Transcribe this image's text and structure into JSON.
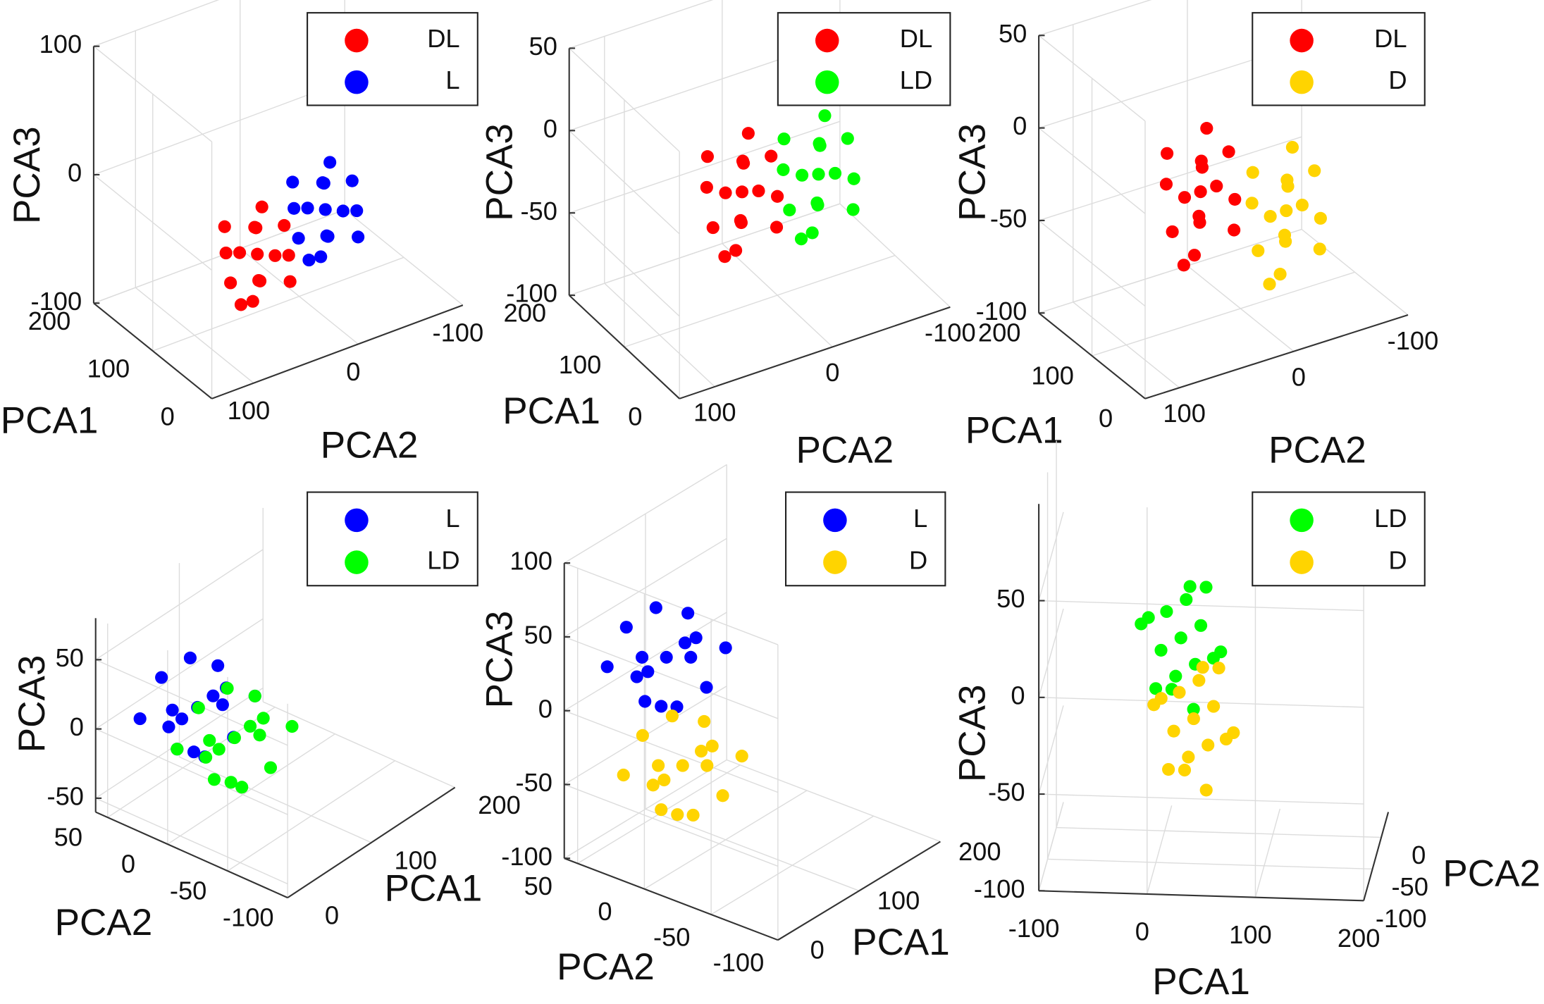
{
  "chart_data": [
    {
      "type": "scatter3d",
      "xlabel": "PCA1",
      "ylabel": "PCA2",
      "zlabel": "PCA3",
      "xlim": [
        0,
        200
      ],
      "ylim": [
        -100,
        140
      ],
      "zlim": [
        -100,
        100
      ],
      "xticks": [
        0,
        100,
        200
      ],
      "yticks": [
        -100,
        0,
        100
      ],
      "zticks": [
        -100,
        0,
        100
      ],
      "grid": true,
      "legend": "upper right",
      "series": [
        {
          "name": "DL",
          "color": "#ff0000",
          "x": [
            100,
            120,
            80,
            110,
            90,
            130,
            70,
            100,
            100,
            110,
            90,
            120,
            80,
            140,
            60,
            110
          ],
          "y": [
            40,
            30,
            50,
            60,
            20,
            40,
            40,
            70,
            10,
            30,
            50,
            60,
            20,
            20,
            60,
            50
          ],
          "z": [
            -55,
            -45,
            -65,
            -75,
            -35,
            -65,
            -45,
            -45,
            -65,
            -25,
            -85,
            -35,
            -75,
            -55,
            -55,
            -95
          ]
        },
        {
          "name": "L",
          "color": "#0000ff",
          "x": [
            100,
            120,
            80,
            110,
            90,
            130,
            70,
            100,
            100,
            110,
            90,
            120,
            80,
            140,
            60,
            110
          ],
          "y": [
            -25,
            -35,
            -15,
            -5,
            -45,
            -25,
            -25,
            5,
            -55,
            -35,
            -15,
            -5,
            -45,
            -45,
            -5,
            -15
          ],
          "z": [
            -40,
            -30,
            -50,
            -60,
            -20,
            -50,
            -30,
            -30,
            -50,
            -10,
            -70,
            -20,
            -60,
            -40,
            -40,
            -80
          ]
        }
      ]
    },
    {
      "type": "scatter3d",
      "xlabel": "PCA1",
      "ylabel": "PCA2",
      "zlabel": "PCA3",
      "xlim": [
        0,
        200
      ],
      "ylim": [
        -100,
        130
      ],
      "zlim": [
        -100,
        50
      ],
      "xticks": [
        0,
        100,
        200
      ],
      "yticks": [
        -100,
        0,
        100
      ],
      "zticks": [
        -100,
        -50,
        0,
        50
      ],
      "grid": true,
      "legend": "upper right",
      "series": [
        {
          "name": "DL",
          "color": "#ff0000",
          "x": [
            100,
            120,
            80,
            110,
            90,
            130,
            70,
            100,
            100,
            110,
            90,
            120,
            80,
            140,
            60,
            110
          ],
          "y": [
            30,
            20,
            40,
            50,
            10,
            30,
            30,
            60,
            0,
            20,
            40,
            50,
            10,
            10,
            50,
            40
          ],
          "z": [
            -30,
            -20,
            -40,
            -50,
            -10,
            -40,
            -20,
            -20,
            -40,
            0,
            -60,
            -10,
            -50,
            -30,
            -30,
            -70
          ]
        },
        {
          "name": "LD",
          "color": "#00ff00",
          "x": [
            100,
            120,
            80,
            110,
            90,
            130,
            70,
            100,
            100,
            110,
            90,
            120,
            80,
            140,
            60,
            110
          ],
          "y": [
            -35,
            -45,
            -25,
            -15,
            -55,
            -35,
            -35,
            -5,
            -65,
            -45,
            -25,
            -15,
            -55,
            -55,
            -15,
            -25
          ],
          "z": [
            -35,
            -25,
            -45,
            -55,
            -15,
            -45,
            -25,
            -25,
            -45,
            -5,
            -65,
            -15,
            -55,
            -35,
            -35,
            -75
          ]
        }
      ]
    },
    {
      "type": "scatter3d",
      "xlabel": "PCA1",
      "ylabel": "PCA2",
      "zlabel": "PCA3",
      "xlim": [
        0,
        200
      ],
      "ylim": [
        -100,
        130
      ],
      "zlim": [
        -100,
        50
      ],
      "xticks": [
        0,
        100,
        200
      ],
      "yticks": [
        -100,
        0,
        100
      ],
      "zticks": [
        -100,
        -50,
        0,
        50
      ],
      "grid": true,
      "legend": "upper right",
      "series": [
        {
          "name": "DL",
          "color": "#ff0000",
          "x": [
            100,
            120,
            80,
            110,
            90,
            130,
            70,
            100,
            100,
            110,
            90,
            120,
            80,
            140,
            60,
            110
          ],
          "y": [
            35,
            25,
            45,
            55,
            15,
            35,
            35,
            65,
            5,
            25,
            45,
            55,
            15,
            15,
            55,
            45
          ],
          "z": [
            -30,
            -20,
            -40,
            -50,
            -10,
            -40,
            -20,
            -20,
            -40,
            0,
            -60,
            -10,
            -50,
            -30,
            -30,
            -70
          ]
        },
        {
          "name": "D",
          "color": "#ffd400",
          "x": [
            100,
            120,
            80,
            110,
            90,
            130,
            70,
            100,
            100,
            110,
            90,
            120,
            80,
            140,
            60,
            110
          ],
          "y": [
            -40,
            -50,
            -30,
            -20,
            -60,
            -40,
            -40,
            -10,
            -70,
            -50,
            -30,
            -20,
            -60,
            -60,
            -20,
            -30
          ],
          "z": [
            -55,
            -45,
            -65,
            -75,
            -35,
            -65,
            -45,
            -45,
            -65,
            -25,
            -85,
            -35,
            -75,
            -55,
            -55,
            -95
          ]
        }
      ]
    },
    {
      "type": "scatter3d",
      "xlabel": "PCA1",
      "ylabel": "PCA2",
      "zlabel": "PCA3",
      "xlim": [
        0,
        200
      ],
      "ylim": [
        -100,
        60
      ],
      "zlim": [
        -60,
        80
      ],
      "xticks": [
        0,
        100,
        200
      ],
      "yticks": [
        -100,
        -50,
        0,
        50
      ],
      "zticks": [
        -50,
        0,
        50
      ],
      "grid": true,
      "legend": "upper right",
      "series": [
        {
          "name": "L",
          "color": "#0000ff",
          "x": [
            50,
            70,
            30,
            60,
            40,
            80,
            20,
            50,
            50,
            60,
            40,
            70,
            30,
            90,
            10,
            60
          ],
          "y": [
            10,
            0,
            20,
            30,
            -10,
            10,
            10,
            40,
            -20,
            0,
            20,
            30,
            -10,
            -10,
            30,
            20
          ],
          "z": [
            15,
            25,
            5,
            -5,
            35,
            5,
            25,
            25,
            5,
            45,
            -15,
            35,
            -5,
            15,
            15,
            -25
          ]
        },
        {
          "name": "LD",
          "color": "#00ff00",
          "x": [
            80,
            100,
            60,
            90,
            70,
            110,
            50,
            80,
            80,
            90,
            70,
            100,
            60,
            120,
            40,
            90
          ],
          "y": [
            0,
            -10,
            10,
            20,
            -20,
            0,
            0,
            30,
            -30,
            -10,
            10,
            20,
            -20,
            -20,
            20,
            10
          ],
          "z": [
            -15,
            -5,
            -25,
            -35,
            5,
            -25,
            -5,
            -5,
            -25,
            15,
            -45,
            5,
            -35,
            -15,
            -15,
            -55
          ]
        }
      ]
    },
    {
      "type": "scatter3d",
      "xlabel": "PCA1",
      "ylabel": "PCA2",
      "zlabel": "PCA3",
      "xlim": [
        0,
        200
      ],
      "ylim": [
        -100,
        60
      ],
      "zlim": [
        -100,
        100
      ],
      "xticks": [
        0,
        100,
        200
      ],
      "yticks": [
        -100,
        -50,
        0,
        50
      ],
      "zticks": [
        -100,
        -50,
        0,
        50,
        100
      ],
      "grid": true,
      "legend": "upper right",
      "series": [
        {
          "name": "L",
          "color": "#0000ff",
          "x": [
            60,
            80,
            40,
            70,
            50,
            90,
            30,
            60,
            60,
            70,
            50,
            80,
            40,
            100,
            20,
            70
          ],
          "y": [
            20,
            10,
            30,
            40,
            0,
            20,
            20,
            50,
            -10,
            10,
            30,
            40,
            0,
            0,
            40,
            30
          ],
          "z": [
            30,
            40,
            20,
            10,
            50,
            20,
            40,
            40,
            20,
            60,
            0,
            50,
            10,
            30,
            30,
            -10
          ]
        },
        {
          "name": "D",
          "color": "#ffd400",
          "x": [
            80,
            100,
            60,
            90,
            70,
            110,
            50,
            80,
            80,
            90,
            70,
            100,
            60,
            120,
            40,
            90
          ],
          "y": [
            20,
            10,
            30,
            40,
            0,
            20,
            20,
            50,
            -10,
            10,
            30,
            40,
            0,
            0,
            40,
            30
          ],
          "z": [
            -50,
            -40,
            -60,
            -70,
            -30,
            -60,
            -40,
            -40,
            -60,
            -20,
            -80,
            -30,
            -70,
            -50,
            -50,
            -90
          ]
        }
      ]
    },
    {
      "type": "scatter3d",
      "xlabel": "PCA1",
      "ylabel": "PCA2",
      "zlabel": "PCA3",
      "xlim": [
        -100,
        200
      ],
      "ylim": [
        -100,
        40
      ],
      "zlim": [
        -100,
        100
      ],
      "xticks": [
        -100,
        0,
        100,
        200
      ],
      "yticks": [
        -100,
        -50,
        0
      ],
      "zticks": [
        -100,
        -50,
        0,
        50
      ],
      "grid": true,
      "legend": "upper right",
      "series": [
        {
          "name": "LD",
          "color": "#00ff00",
          "x": [
            15,
            35,
            -5,
            25,
            5,
            45,
            -15,
            15,
            15,
            25,
            5,
            35,
            -5,
            55,
            -25,
            25
          ],
          "y": [
            0,
            -10,
            10,
            20,
            -20,
            0,
            0,
            30,
            -30,
            -10,
            10,
            20,
            -20,
            -20,
            20,
            10
          ],
          "z": [
            0,
            10,
            -10,
            -20,
            20,
            -10,
            10,
            10,
            -10,
            30,
            -30,
            20,
            -20,
            0,
            0,
            -40
          ]
        },
        {
          "name": "D",
          "color": "#ffd400",
          "x": [
            30,
            50,
            10,
            40,
            20,
            60,
            0,
            30,
            30,
            40,
            20,
            50,
            10,
            70,
            -10,
            40
          ],
          "y": [
            -20,
            -30,
            -10,
            0,
            -40,
            -20,
            -20,
            10,
            -50,
            -30,
            -10,
            0,
            -40,
            -40,
            0,
            -10
          ],
          "z": [
            -35,
            -25,
            -45,
            -55,
            -15,
            -45,
            -25,
            -25,
            -45,
            -5,
            -65,
            -15,
            -55,
            -35,
            -35,
            -75
          ]
        }
      ]
    }
  ]
}
